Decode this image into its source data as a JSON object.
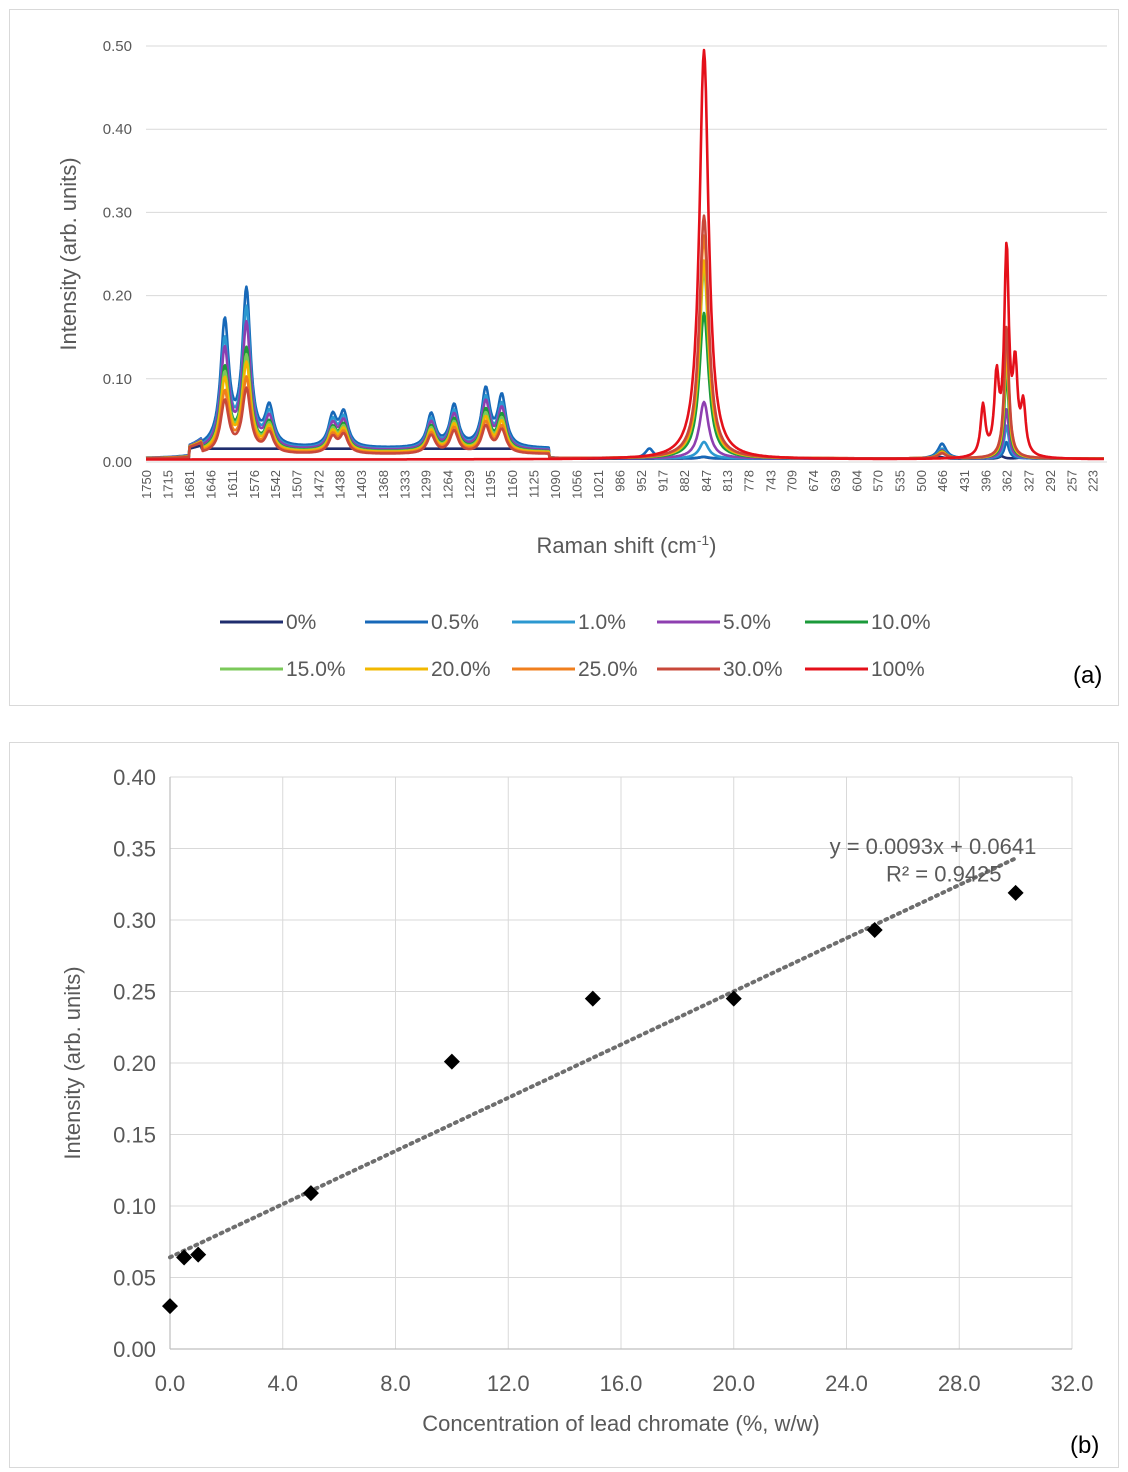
{
  "chart_data": [
    {
      "type": "line",
      "panel_label": "(a)",
      "xlabel": "Raman shift (cm-1)",
      "xlabel_main": "Raman shift (cm",
      "xlabel_sup": "-1",
      "xlabel_close": ")",
      "ylabel": "Intensity (arb. units)",
      "x_range": [
        1750,
        200
      ],
      "x_direction": "decreasing",
      "ylim": [
        0,
        0.5
      ],
      "y_ticks": [
        "0.00",
        "0.10",
        "0.20",
        "0.30",
        "0.40",
        "0.50"
      ],
      "x_ticks": [
        1750,
        1715,
        1681,
        1646,
        1611,
        1576,
        1542,
        1507,
        1472,
        1438,
        1403,
        1368,
        1333,
        1299,
        1264,
        1229,
        1195,
        1160,
        1125,
        1090,
        1056,
        1021,
        986,
        952,
        917,
        882,
        847,
        813,
        778,
        743,
        709,
        674,
        639,
        604,
        570,
        535,
        500,
        466,
        431,
        396,
        362,
        327,
        292,
        257,
        223
      ],
      "grid": "horizontal",
      "legend_position": "bottom",
      "series": [
        {
          "name": "0%",
          "color": "#1f2d6e",
          "peaks": [
            [
              1623,
              0.0
            ],
            [
              1588,
              0.0
            ],
            [
              851,
              0.002
            ],
            [
              470,
              0.002
            ],
            [
              370,
              0.003
            ],
            [
              335,
              0.004
            ]
          ]
        },
        {
          "name": "0.5%",
          "color": "#1768b8",
          "peaks": [
            [
              1623,
              0.148
            ],
            [
              1588,
              0.185
            ],
            [
              1551,
              0.045
            ],
            [
              1449,
              0.036
            ],
            [
              1431,
              0.04
            ],
            [
              1290,
              0.04
            ],
            [
              1253,
              0.05
            ],
            [
              1202,
              0.068
            ],
            [
              1176,
              0.06
            ],
            [
              850,
              0.002
            ],
            [
              938,
              0.012
            ],
            [
              466,
              0.018
            ],
            [
              362,
              0.02
            ]
          ]
        },
        {
          "name": "1.0%",
          "color": "#2c98d0",
          "peaks": [
            [
              1623,
              0.128
            ],
            [
              1588,
              0.165
            ],
            [
              1551,
              0.04
            ],
            [
              1449,
              0.032
            ],
            [
              1431,
              0.036
            ],
            [
              1290,
              0.036
            ],
            [
              1253,
              0.045
            ],
            [
              1202,
              0.06
            ],
            [
              1176,
              0.052
            ],
            [
              850,
              0.02
            ],
            [
              466,
              0.012
            ],
            [
              362,
              0.04
            ]
          ]
        },
        {
          "name": "5.0%",
          "color": "#8e3fb0",
          "peaks": [
            [
              1623,
              0.118
            ],
            [
              1588,
              0.148
            ],
            [
              1551,
              0.036
            ],
            [
              1449,
              0.029
            ],
            [
              1431,
              0.033
            ],
            [
              1290,
              0.033
            ],
            [
              1253,
              0.042
            ],
            [
              1202,
              0.056
            ],
            [
              1176,
              0.048
            ],
            [
              850,
              0.068
            ],
            [
              466,
              0.01
            ],
            [
              362,
              0.06
            ]
          ]
        },
        {
          "name": "10.0%",
          "color": "#1b9a3a",
          "peaks": [
            [
              1623,
              0.098
            ],
            [
              1588,
              0.12
            ],
            [
              1551,
              0.032
            ],
            [
              1449,
              0.026
            ],
            [
              1431,
              0.03
            ],
            [
              1290,
              0.03
            ],
            [
              1253,
              0.038
            ],
            [
              1202,
              0.048
            ],
            [
              1176,
              0.042
            ],
            [
              850,
              0.175
            ],
            [
              466,
              0.009
            ],
            [
              362,
              0.1
            ]
          ]
        },
        {
          "name": "15.0%",
          "color": "#7bc95a",
          "peaks": [
            [
              1623,
              0.092
            ],
            [
              1588,
              0.112
            ],
            [
              1551,
              0.03
            ],
            [
              1449,
              0.025
            ],
            [
              1431,
              0.028
            ],
            [
              1290,
              0.028
            ],
            [
              1253,
              0.035
            ],
            [
              1202,
              0.044
            ],
            [
              1176,
              0.038
            ],
            [
              850,
              0.228
            ],
            [
              466,
              0.008
            ],
            [
              362,
              0.12
            ]
          ]
        },
        {
          "name": "20.0%",
          "color": "#f2b800",
          "peaks": [
            [
              1623,
              0.086
            ],
            [
              1588,
              0.104
            ],
            [
              1551,
              0.028
            ],
            [
              1449,
              0.023
            ],
            [
              1431,
              0.026
            ],
            [
              1290,
              0.026
            ],
            [
              1253,
              0.033
            ],
            [
              1202,
              0.04
            ],
            [
              1176,
              0.035
            ],
            [
              850,
              0.238
            ],
            [
              466,
              0.008
            ],
            [
              362,
              0.13
            ]
          ]
        },
        {
          "name": "25.0%",
          "color": "#f07f1e",
          "peaks": [
            [
              1623,
              0.072
            ],
            [
              1588,
              0.088
            ],
            [
              1551,
              0.026
            ],
            [
              1449,
              0.021
            ],
            [
              1431,
              0.024
            ],
            [
              1290,
              0.024
            ],
            [
              1253,
              0.03
            ],
            [
              1202,
              0.036
            ],
            [
              1176,
              0.031
            ],
            [
              850,
              0.268
            ],
            [
              466,
              0.007
            ],
            [
              362,
              0.15
            ]
          ]
        },
        {
          "name": "30.0%",
          "color": "#c8483a",
          "peaks": [
            [
              1623,
              0.062
            ],
            [
              1588,
              0.076
            ],
            [
              1551,
              0.024
            ],
            [
              1449,
              0.019
            ],
            [
              1431,
              0.022
            ],
            [
              1290,
              0.022
            ],
            [
              1253,
              0.027
            ],
            [
              1202,
              0.032
            ],
            [
              1176,
              0.028
            ],
            [
              850,
              0.292
            ],
            [
              466,
              0.006
            ],
            [
              362,
              0.16
            ]
          ]
        },
        {
          "name": "100%",
          "color": "#e4101a",
          "peaks": [
            [
              850,
              0.492
            ],
            [
              400,
              0.06
            ],
            [
              378,
              0.09
            ],
            [
              362,
              0.245
            ],
            [
              348,
              0.1
            ],
            [
              335,
              0.058
            ]
          ]
        }
      ]
    },
    {
      "type": "scatter",
      "panel_label": "(b)",
      "xlabel": "Concentration of lead chromate (%, w/w)",
      "ylabel": "Intensity (arb. units)",
      "xlim": [
        0,
        32
      ],
      "ylim": [
        0,
        0.4
      ],
      "x_ticks": [
        "0.0",
        "4.0",
        "8.0",
        "12.0",
        "16.0",
        "20.0",
        "24.0",
        "28.0",
        "32.0"
      ],
      "y_ticks": [
        "0.00",
        "0.05",
        "0.10",
        "0.15",
        "0.20",
        "0.25",
        "0.30",
        "0.35",
        "0.40"
      ],
      "grid": "both",
      "points": [
        {
          "x": 0,
          "y": 0.03
        },
        {
          "x": 0.5,
          "y": 0.064
        },
        {
          "x": 1.0,
          "y": 0.066
        },
        {
          "x": 5.0,
          "y": 0.109
        },
        {
          "x": 10.0,
          "y": 0.201
        },
        {
          "x": 15.0,
          "y": 0.245
        },
        {
          "x": 20.0,
          "y": 0.245
        },
        {
          "x": 25.0,
          "y": 0.293
        },
        {
          "x": 30.0,
          "y": 0.319
        }
      ],
      "trendline": {
        "slope": 0.0093,
        "intercept": 0.0641,
        "x_range": [
          0,
          30
        ],
        "equation": "y = 0.0093x + 0.0641",
        "r2": "R² = 0.9425"
      }
    }
  ]
}
